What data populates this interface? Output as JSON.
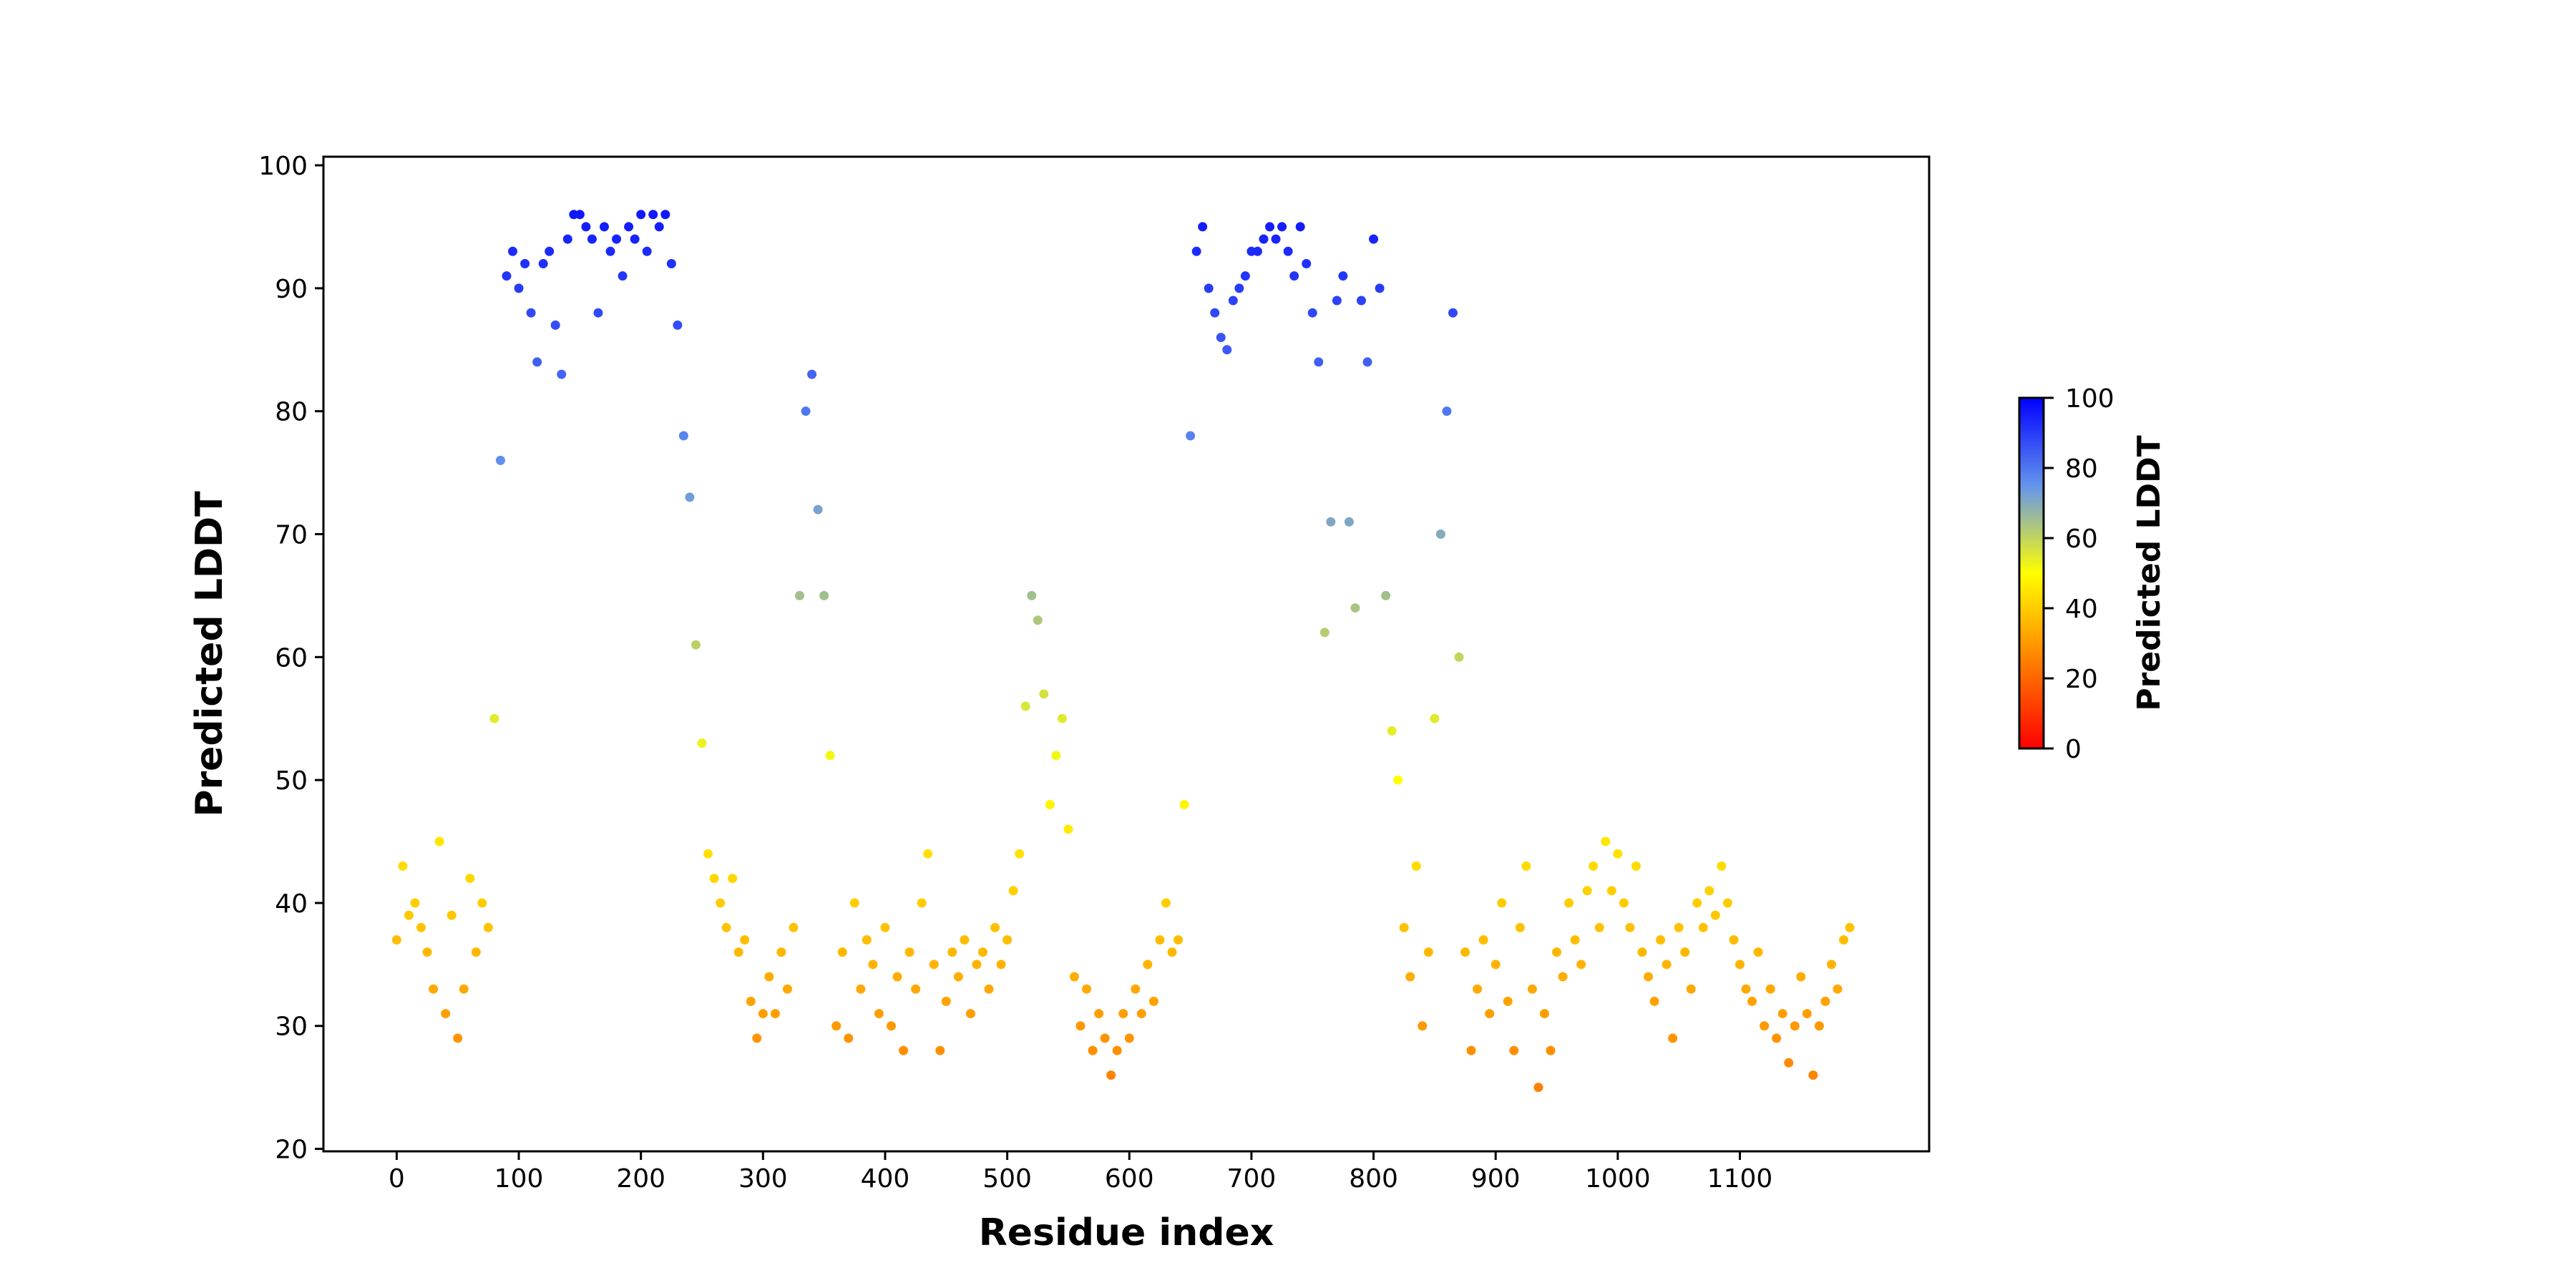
{
  "chart_data": {
    "type": "scatter",
    "title": "",
    "xlabel": "Residue index",
    "ylabel": "Predicted LDDT",
    "xlim": [
      -60,
      1255
    ],
    "ylim": [
      19.8,
      100.7
    ],
    "xticks": [
      0,
      100,
      200,
      300,
      400,
      500,
      600,
      700,
      800,
      900,
      1000,
      1100
    ],
    "xtick_labels": [
      "0",
      "100",
      "200",
      "300",
      "400",
      "500",
      "600",
      "700",
      "800",
      "900",
      "1000",
      "1100"
    ],
    "yticks": [
      20,
      30,
      40,
      50,
      60,
      70,
      80,
      90,
      100
    ],
    "ytick_labels": [
      "20",
      "30",
      "40",
      "50",
      "60",
      "70",
      "80",
      "90",
      "100"
    ],
    "grid": false,
    "x_start": 0,
    "x_step": 5,
    "y": [
      37,
      43,
      39,
      40,
      38,
      36,
      33,
      45,
      31,
      39,
      29,
      33,
      42,
      36,
      40,
      38,
      55,
      76,
      91,
      93,
      90,
      92,
      88,
      84,
      92,
      93,
      87,
      83,
      94,
      96,
      96,
      95,
      94,
      88,
      95,
      93,
      94,
      91,
      95,
      94,
      96,
      93,
      96,
      95,
      96,
      92,
      87,
      78,
      73,
      61,
      53,
      44,
      42,
      40,
      38,
      42,
      36,
      37,
      32,
      29,
      31,
      34,
      31,
      36,
      33,
      38,
      65,
      80,
      83,
      72,
      65,
      52,
      30,
      36,
      29,
      40,
      33,
      37,
      35,
      31,
      38,
      30,
      34,
      28,
      36,
      33,
      40,
      44,
      35,
      28,
      32,
      36,
      34,
      37,
      31,
      35,
      36,
      33,
      38,
      35,
      37,
      41,
      44,
      56,
      65,
      63,
      57,
      48,
      52,
      55,
      46,
      34,
      30,
      33,
      28,
      31,
      29,
      26,
      28,
      31,
      29,
      33,
      31,
      35,
      32,
      37,
      40,
      36,
      37,
      48,
      78,
      93,
      95,
      90,
      88,
      86,
      85,
      89,
      90,
      91,
      93,
      93,
      94,
      95,
      94,
      95,
      93,
      91,
      95,
      92,
      88,
      84,
      62,
      71,
      89,
      91,
      71,
      64,
      89,
      84,
      94,
      90,
      65,
      54,
      50,
      38,
      34,
      43,
      30,
      36,
      55,
      70,
      80,
      88,
      60,
      36,
      28,
      33,
      37,
      31,
      35,
      40,
      32,
      28,
      38,
      43,
      33,
      25,
      31,
      28,
      36,
      34,
      40,
      37,
      35,
      41,
      43,
      38,
      45,
      41,
      44,
      40,
      38,
      43,
      36,
      34,
      32,
      37,
      35,
      29,
      38,
      36,
      33,
      40,
      38,
      41,
      39,
      43,
      40,
      37,
      35,
      33,
      32,
      36,
      30,
      33,
      29,
      31,
      27,
      30,
      34,
      31,
      26,
      30,
      32,
      35,
      33,
      37,
      38
    ],
    "colorbar": {
      "label": "Predicted LDDT",
      "range": [
        0,
        100
      ],
      "ticks": [
        0,
        20,
        40,
        60,
        80,
        100
      ],
      "tick_labels": [
        "0",
        "20",
        "40",
        "60",
        "80",
        "100"
      ],
      "colormap_stops": [
        {
          "value": 0,
          "color": "#ff0000"
        },
        {
          "value": 50,
          "color": "#ffff00"
        },
        {
          "value": 75,
          "color": "#6495ed"
        },
        {
          "value": 100,
          "color": "#0000ff"
        }
      ]
    }
  }
}
